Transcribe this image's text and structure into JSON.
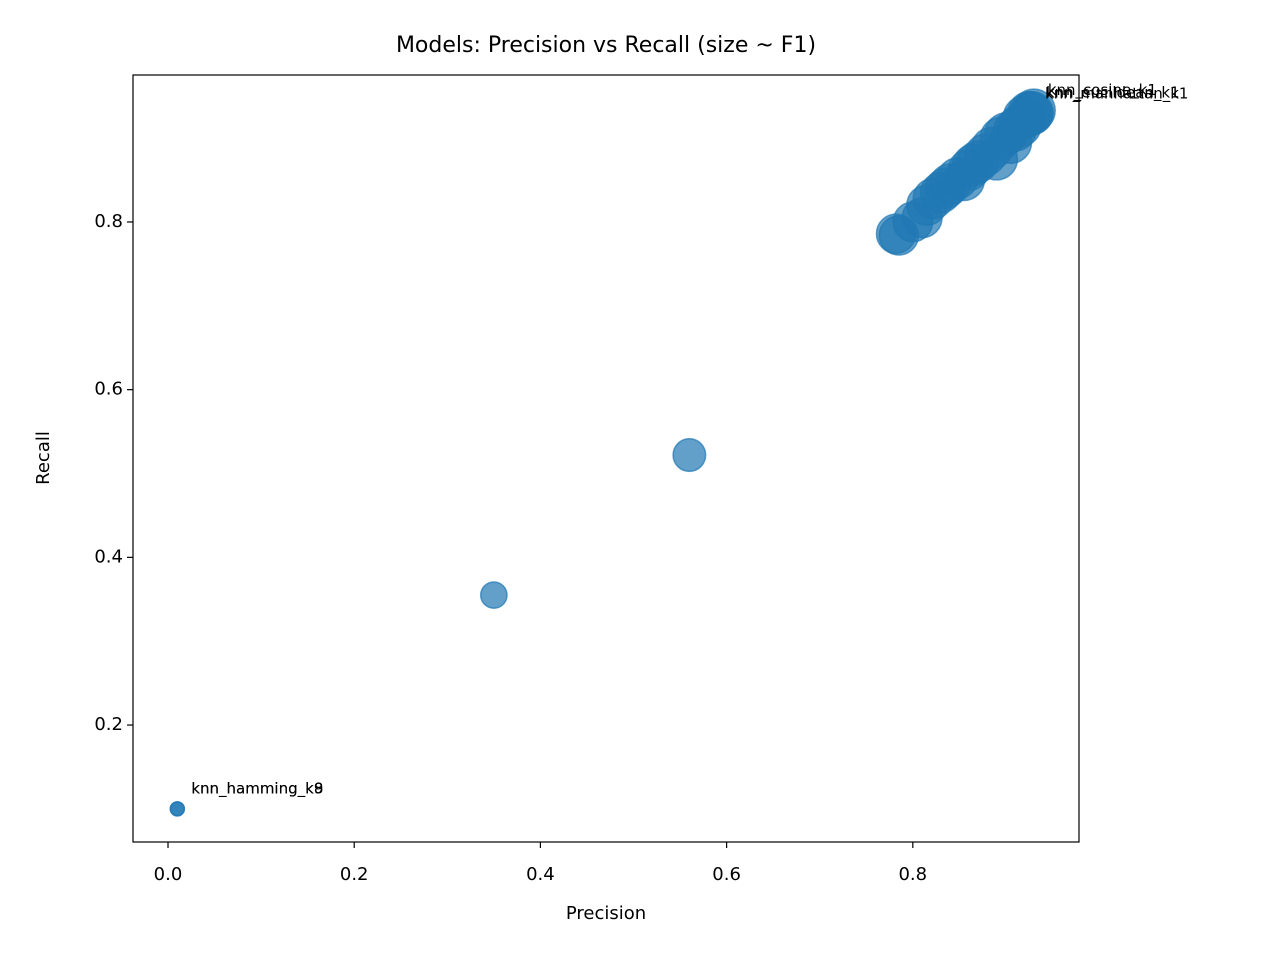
{
  "chart_data": {
    "type": "scatter",
    "title": "Models: Precision vs Recall (size ~ F1)",
    "x_label": "Precision",
    "y_label": "Recall",
    "color": "#1f77b4",
    "x": [
      0.01,
      0.01,
      0.35,
      0.56,
      0.782,
      0.785,
      0.8,
      0.81,
      0.815,
      0.822,
      0.83,
      0.835,
      0.84,
      0.848,
      0.855,
      0.86,
      0.865,
      0.87,
      0.878,
      0.885,
      0.89,
      0.895,
      0.9,
      0.905,
      0.91,
      0.915,
      0.92,
      0.925,
      0.93,
      0.928,
      0.927
    ],
    "values": [
      0.1,
      0.1,
      0.355,
      0.522,
      0.786,
      0.784,
      0.8,
      0.805,
      0.82,
      0.828,
      0.835,
      0.84,
      0.845,
      0.852,
      0.85,
      0.862,
      0.868,
      0.872,
      0.88,
      0.888,
      0.875,
      0.9,
      0.905,
      0.895,
      0.91,
      0.915,
      0.925,
      0.93,
      0.933,
      0.93,
      0.929
    ],
    "sizes": [
      0.1,
      0.1,
      0.352,
      0.54,
      0.784,
      0.784,
      0.8,
      0.807,
      0.817,
      0.825,
      0.832,
      0.837,
      0.842,
      0.85,
      0.852,
      0.861,
      0.866,
      0.871,
      0.879,
      0.886,
      0.882,
      0.897,
      0.902,
      0.9,
      0.91,
      0.915,
      0.922,
      0.927,
      0.931,
      0.929,
      0.928
    ],
    "labels": [
      "knn_hamming_k8",
      "knn_hamming_k9",
      null,
      null,
      null,
      null,
      null,
      null,
      null,
      null,
      null,
      null,
      null,
      null,
      null,
      null,
      null,
      null,
      null,
      null,
      null,
      null,
      null,
      null,
      null,
      null,
      null,
      null,
      "knn_cosine_k1",
      "knn_euclidean_k1",
      "knn_manhattan_k1"
    ],
    "xlim": [
      -0.0376,
      0.9785
    ],
    "ylim": [
      0.0605,
      0.9753
    ],
    "xticks": [
      {
        "value": 0,
        "label": "0.0"
      },
      0.2,
      0.4,
      0.6,
      0.8
    ],
    "yticks": [
      0.2,
      0.4,
      0.6,
      0.8
    ],
    "grid": false
  }
}
